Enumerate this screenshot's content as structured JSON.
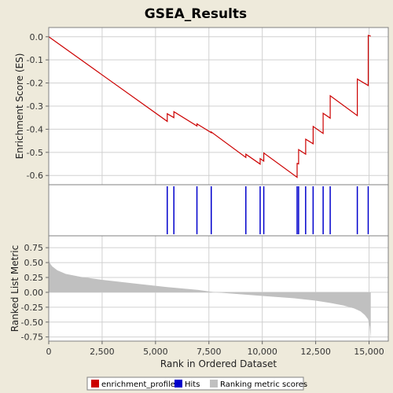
{
  "chart_data": {
    "type": "line",
    "title": "GSEA_Results",
    "colors": {
      "background": "#EEEADB",
      "plot_background": "#FFFFFF",
      "gridline": "#D0D0D0",
      "enrichment_profile": "#CC0000",
      "hits": "#0000CC",
      "ranking_metric": "#C0C0C0"
    },
    "x": {
      "label": "Rank in Ordered Dataset",
      "range": [
        0,
        15900
      ],
      "ticks": [
        0,
        2500,
        5000,
        7500,
        10000,
        12500,
        15000
      ],
      "tick_labels": [
        "0",
        "2,500",
        "5,000",
        "7,500",
        "10,000",
        "12,500",
        "15,000"
      ]
    },
    "enrichment_panel": {
      "ylabel": "Enrichment Score (ES)",
      "ylim": [
        -0.64,
        0.04
      ],
      "ticks": [
        0.0,
        -0.1,
        -0.2,
        -0.3,
        -0.4,
        -0.5,
        -0.6
      ],
      "tick_labels": [
        "0.0",
        "-0.1",
        "-0.2",
        "-0.3",
        "-0.4",
        "-0.5",
        "-0.6"
      ],
      "grid": true,
      "series": {
        "name": "enrichment_profile",
        "points": [
          [
            0,
            0.0
          ],
          [
            5550,
            -0.366
          ],
          [
            5550,
            -0.333
          ],
          [
            5860,
            -0.35
          ],
          [
            5860,
            -0.324
          ],
          [
            6940,
            -0.386
          ],
          [
            6940,
            -0.377
          ],
          [
            7610,
            -0.415
          ],
          [
            7610,
            -0.412
          ],
          [
            9230,
            -0.522
          ],
          [
            9230,
            -0.508
          ],
          [
            9900,
            -0.551
          ],
          [
            9900,
            -0.527
          ],
          [
            10070,
            -0.538
          ],
          [
            10070,
            -0.503
          ],
          [
            11630,
            -0.608
          ],
          [
            11630,
            -0.548
          ],
          [
            11700,
            -0.55
          ],
          [
            11700,
            -0.488
          ],
          [
            12030,
            -0.508
          ],
          [
            12030,
            -0.443
          ],
          [
            12380,
            -0.463
          ],
          [
            12380,
            -0.388
          ],
          [
            12850,
            -0.418
          ],
          [
            12850,
            -0.331
          ],
          [
            13180,
            -0.352
          ],
          [
            13180,
            -0.255
          ],
          [
            14450,
            -0.341
          ],
          [
            14450,
            -0.183
          ],
          [
            14960,
            -0.211
          ],
          [
            14960,
            0.006
          ],
          [
            15080,
            0.003
          ]
        ]
      }
    },
    "hits_panel": {
      "name": "Hits",
      "positions": [
        5550,
        5860,
        6940,
        7610,
        9230,
        9900,
        10070,
        11630,
        11700,
        12030,
        12380,
        12850,
        13180,
        14450,
        14960
      ]
    },
    "metric_panel": {
      "name": "Ranking metric scores",
      "ylabel": "Ranked List Metric",
      "ylim": [
        -0.82,
        0.95
      ],
      "ticks": [
        0.75,
        0.5,
        0.25,
        0.0,
        -0.25,
        -0.5,
        -0.75
      ],
      "tick_labels": [
        "0.75",
        "0.50",
        "0.25",
        "0.00",
        "-0.25",
        "-0.50",
        "-0.75"
      ],
      "grid": true,
      "curve_points": [
        [
          0,
          0.58
        ],
        [
          40,
          0.5
        ],
        [
          150,
          0.44
        ],
        [
          400,
          0.37
        ],
        [
          800,
          0.31
        ],
        [
          1500,
          0.26
        ],
        [
          2500,
          0.21
        ],
        [
          4000,
          0.15
        ],
        [
          5500,
          0.09
        ],
        [
          7000,
          0.04
        ],
        [
          7800,
          0.0
        ],
        [
          8500,
          -0.02
        ],
        [
          10000,
          -0.06
        ],
        [
          11500,
          -0.1
        ],
        [
          12500,
          -0.14
        ],
        [
          13200,
          -0.18
        ],
        [
          13800,
          -0.22
        ],
        [
          14300,
          -0.27
        ],
        [
          14600,
          -0.32
        ],
        [
          14800,
          -0.38
        ],
        [
          14950,
          -0.45
        ],
        [
          15030,
          -0.58
        ],
        [
          15080,
          -0.78
        ]
      ]
    },
    "legend": {
      "placement": "bottom",
      "items": [
        {
          "label": "enrichment_profile",
          "color": "#CC0000"
        },
        {
          "label": "Hits",
          "color": "#0000CC"
        },
        {
          "label": "Ranking metric scores",
          "color": "#C0C0C0"
        }
      ]
    }
  }
}
